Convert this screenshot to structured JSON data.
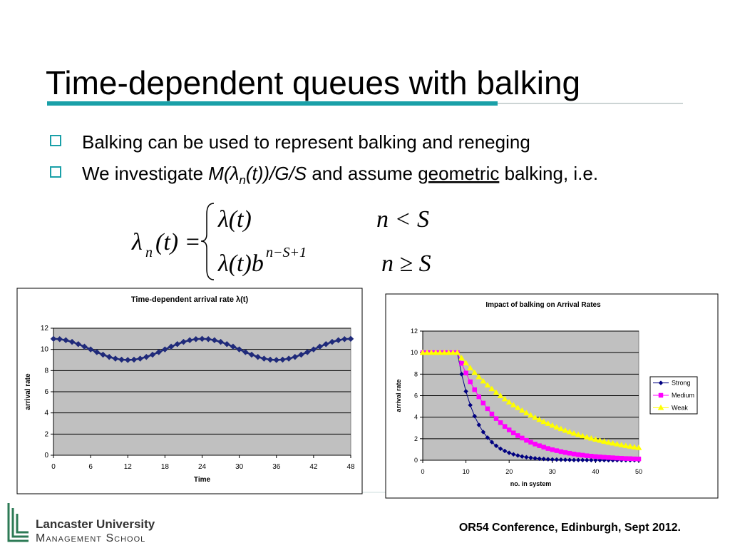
{
  "slide": {
    "title": "Time-dependent queues with balking",
    "bullets": [
      "Balking can be used to represent balking and reneging",
      [
        "We investigate ",
        "M(λ",
        "n",
        "(t))/G/S",
        " and assume ",
        "geometric",
        " balking, i.e."
      ]
    ],
    "formula": {
      "lhs": [
        "λ",
        "n",
        "(t) ="
      ],
      "cases": [
        {
          "expr": "λ(t)",
          "cond": "n < S"
        },
        {
          "expr": "λ(t)b",
          "power": "n−S+1",
          "cond": "n ≥ S"
        }
      ]
    }
  },
  "footer": {
    "conference": "OR54 Conference, Edinburgh, Sept 2012.",
    "logo": [
      "Lancaster University",
      "Management School"
    ]
  },
  "chart_data": [
    {
      "type": "line",
      "title": "Time-dependent arrival rate λ(t)",
      "x_label": "Time",
      "y_label": "arrival rate",
      "x": [
        0,
        1,
        2,
        3,
        4,
        5,
        6,
        7,
        8,
        9,
        10,
        11,
        12,
        13,
        14,
        15,
        16,
        17,
        18,
        19,
        20,
        21,
        22,
        23,
        24,
        25,
        26,
        27,
        28,
        29,
        30,
        31,
        32,
        33,
        34,
        35,
        36,
        37,
        38,
        39,
        40,
        41,
        42,
        43,
        44,
        45,
        46,
        47,
        48
      ],
      "series": [
        {
          "color": "#1f2a7a",
          "marker": "diamond",
          "values": [
            11,
            10.97,
            10.87,
            10.71,
            10.5,
            10.26,
            10,
            9.74,
            9.5,
            9.29,
            9.13,
            9.03,
            9,
            9.03,
            9.13,
            9.29,
            9.5,
            9.74,
            10,
            10.26,
            10.5,
            10.71,
            10.87,
            10.97,
            11,
            10.97,
            10.87,
            10.71,
            10.5,
            10.26,
            10,
            9.74,
            9.5,
            9.29,
            9.13,
            9.03,
            9,
            9.03,
            9.13,
            9.29,
            9.5,
            9.74,
            10,
            10.26,
            10.5,
            10.71,
            10.87,
            10.97,
            11
          ]
        }
      ],
      "xlim": [
        0,
        48
      ],
      "xticks": [
        0,
        6,
        12,
        18,
        24,
        30,
        36,
        42,
        48
      ],
      "ylim": [
        0,
        12
      ],
      "yticks": [
        0,
        2,
        4,
        6,
        8,
        10,
        12
      ],
      "grid": true,
      "plot_background": "#c0c0c0"
    },
    {
      "type": "line",
      "title": "Impact of balking on Arrival Rates",
      "x_label": "no. in system",
      "y_label": "arrival rate",
      "x": [
        0,
        1,
        2,
        3,
        4,
        5,
        6,
        7,
        8,
        9,
        10,
        11,
        12,
        13,
        14,
        15,
        16,
        17,
        18,
        19,
        20,
        21,
        22,
        23,
        24,
        25,
        26,
        27,
        28,
        29,
        30,
        31,
        32,
        33,
        34,
        35,
        36,
        37,
        38,
        39,
        40,
        41,
        42,
        43,
        44,
        45,
        46,
        47,
        48,
        49,
        50
      ],
      "series": [
        {
          "name": "Strong",
          "color": "#000080",
          "marker": "diamond",
          "values": [
            10,
            10,
            10,
            10,
            10,
            10,
            10,
            10,
            10,
            8,
            6.4,
            5.12,
            4.1,
            3.28,
            2.62,
            2.1,
            1.68,
            1.34,
            1.07,
            0.86,
            0.69,
            0.55,
            0.44,
            0.35,
            0.28,
            0.23,
            0.18,
            0.14,
            0.12,
            0.09,
            0.07,
            0.06,
            0.05,
            0.04,
            0.03,
            0.02,
            0.02,
            0.02,
            0.01,
            0.01,
            0.01,
            0.01,
            0.01,
            0,
            0,
            0,
            0,
            0,
            0,
            0,
            0
          ]
        },
        {
          "name": "Medium",
          "color": "#ff00ff",
          "marker": "square",
          "values": [
            10,
            10,
            10,
            10,
            10,
            10,
            10,
            10,
            10,
            9,
            8.1,
            7.29,
            6.56,
            5.9,
            5.31,
            4.78,
            4.3,
            3.87,
            3.49,
            3.14,
            2.82,
            2.54,
            2.29,
            2.06,
            1.85,
            1.67,
            1.5,
            1.35,
            1.22,
            1.09,
            0.98,
            0.89,
            0.8,
            0.72,
            0.65,
            0.58,
            0.52,
            0.47,
            0.42,
            0.38,
            0.34,
            0.31,
            0.28,
            0.25,
            0.23,
            0.2,
            0.18,
            0.16,
            0.15,
            0.13,
            0.12
          ]
        },
        {
          "name": "Weak",
          "color": "#ffff00",
          "marker": "triangle",
          "values": [
            10,
            10,
            10,
            10,
            10,
            10,
            10,
            10,
            10,
            9.5,
            9.03,
            8.57,
            8.15,
            7.74,
            7.35,
            6.98,
            6.63,
            6.3,
            5.99,
            5.69,
            5.4,
            5.13,
            4.88,
            4.63,
            4.4,
            4.18,
            3.97,
            3.77,
            3.58,
            3.41,
            3.24,
            3.07,
            2.92,
            2.77,
            2.64,
            2.5,
            2.38,
            2.26,
            2.15,
            2.04,
            1.94,
            1.84,
            1.75,
            1.66,
            1.58,
            1.5,
            1.42,
            1.35,
            1.29,
            1.22,
            1.16
          ]
        }
      ],
      "xlim": [
        0,
        50
      ],
      "xticks": [
        0,
        10,
        20,
        30,
        40,
        50
      ],
      "ylim": [
        0,
        12
      ],
      "yticks": [
        0,
        2,
        4,
        6,
        8,
        10,
        12
      ],
      "grid": true,
      "plot_background": "#c0c0c0",
      "legend": "right"
    }
  ]
}
